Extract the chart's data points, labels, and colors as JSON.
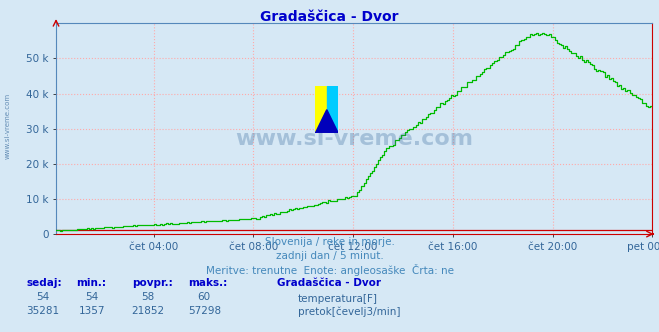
{
  "title": "Gradaščica - Dvor",
  "title_color": "#0000cc",
  "bg_color": "#d6e8f5",
  "plot_bg_color": "#d6e8f5",
  "grid_color": "#ffaaaa",
  "axis_color": "#cc0000",
  "text_color_blue": "#4488bb",
  "text_color_dark": "#336699",
  "watermark": "www.si-vreme.com",
  "subtitle1": "Slovenija / reke in morje.",
  "subtitle2": "zadnji dan / 5 minut.",
  "subtitle3": "Meritve: trenutne  Enote: angleosaške  Črta: ne",
  "legend_title": "Gradaščica - Dvor",
  "leg_temp_label": "temperatura[F]",
  "leg_flow_label": "pretok[čevelj3/min]",
  "temp_color": "#cc0000",
  "flow_color": "#00bb00",
  "table_headers": [
    "sedaj:",
    "min.:",
    "povpr.:",
    "maks.:"
  ],
  "temp_row": [
    "54",
    "54",
    "58",
    "60"
  ],
  "flow_row": [
    "35281",
    "1357",
    "21852",
    "57298"
  ],
  "ylim": [
    0,
    60000
  ],
  "yticks": [
    0,
    10000,
    20000,
    30000,
    40000,
    50000
  ],
  "n_points": 288,
  "xtick_positions": [
    47,
    95,
    143,
    191,
    239,
    287
  ],
  "xtick_labels": [
    "čet 04:00",
    "čet 08:00",
    "čet 12:00",
    "čet 16:00",
    "čet 20:00",
    "pet 00:00"
  ]
}
